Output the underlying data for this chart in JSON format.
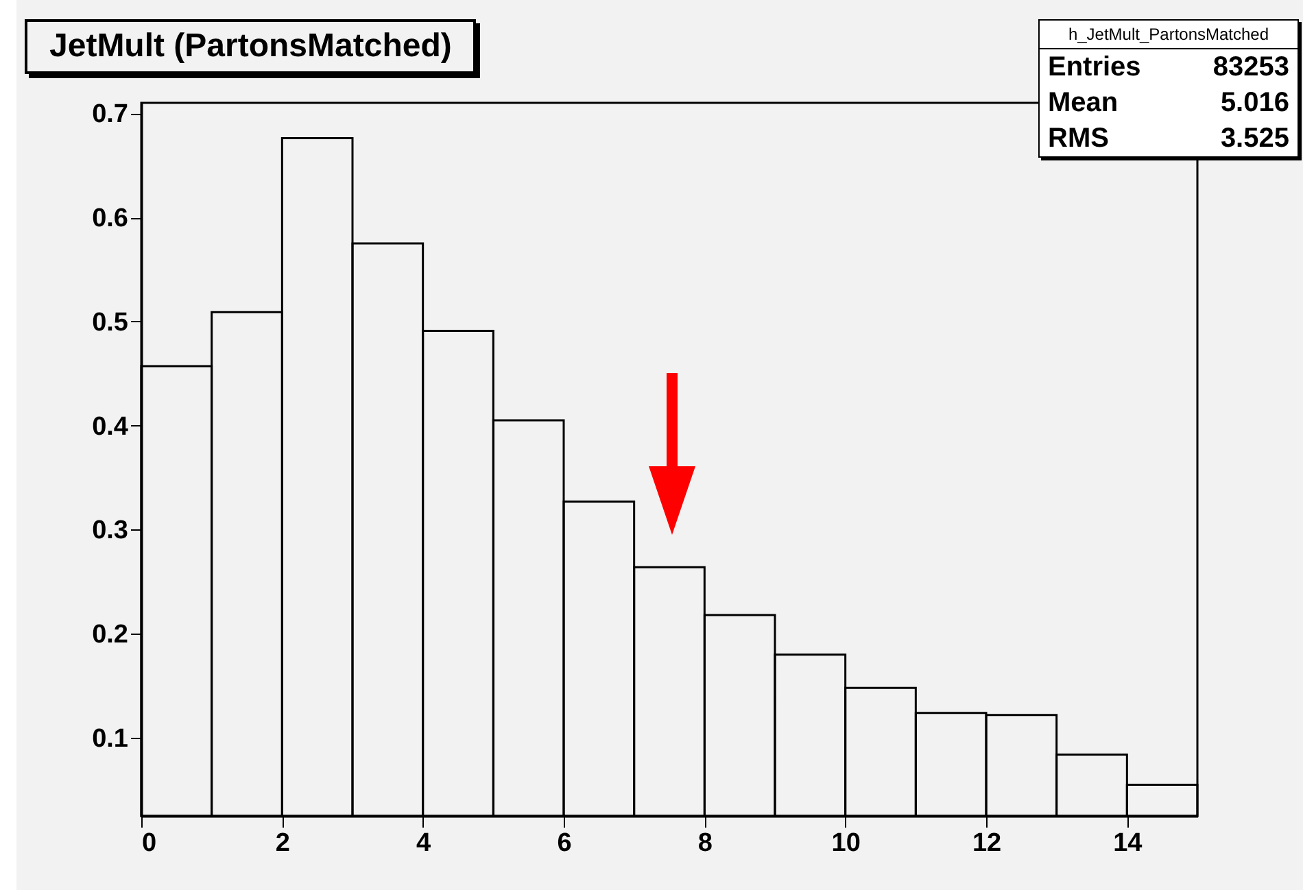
{
  "chart_data": {
    "type": "histogram",
    "title": "JetMult (PartonsMatched)",
    "bins": [
      0,
      1,
      2,
      3,
      4,
      5,
      6,
      7,
      8,
      9,
      10,
      11,
      12,
      13,
      14,
      15
    ],
    "values": [
      0.457,
      0.509,
      0.676,
      0.575,
      0.491,
      0.405,
      0.327,
      0.264,
      0.218,
      0.18,
      0.148,
      0.124,
      0.122,
      0.084,
      0.055
    ],
    "color": "#000000",
    "xlim": [
      0,
      15
    ],
    "xticks": [
      0,
      2,
      4,
      6,
      8,
      10,
      12,
      14
    ],
    "ylim": [
      0.025,
      0.71
    ],
    "yticks": [
      0.1,
      0.2,
      0.3,
      0.4,
      0.5,
      0.6,
      0.7
    ],
    "annotations": [
      "h_JetMult_PartonsMatched",
      "Entries 83253",
      "Mean 5.016",
      "RMS 3.525"
    ]
  }
}
